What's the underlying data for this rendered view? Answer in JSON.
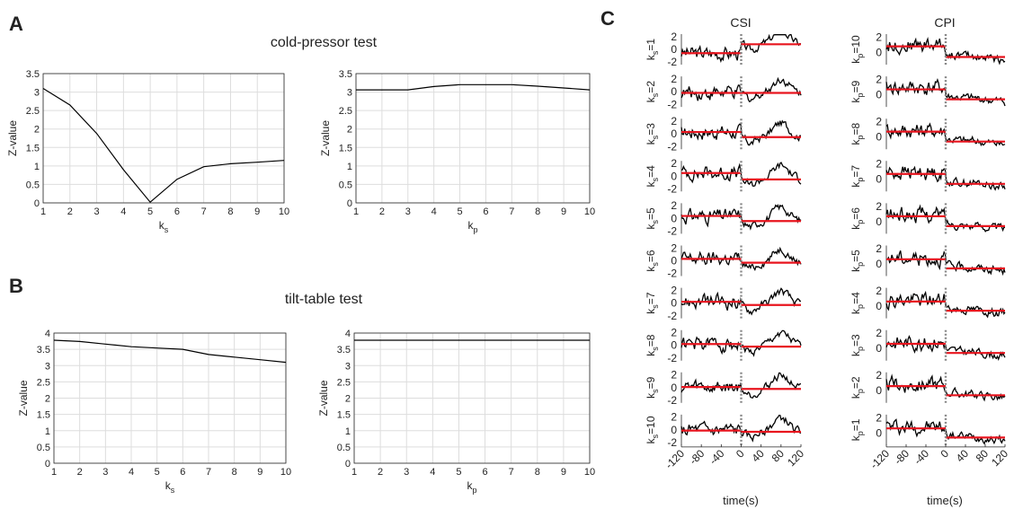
{
  "panels": {
    "A": {
      "letter": "A",
      "title": "cold-pressor test"
    },
    "B": {
      "letter": "B",
      "title": "tilt-table test"
    },
    "C": {
      "letter": "C",
      "col_titles": [
        "CSI",
        "CPI"
      ],
      "xlabel": "time(s)"
    }
  },
  "colors": {
    "line": "#000000",
    "red_mean": "#e8141e",
    "grid": "#dddddd",
    "dotted": "#888888"
  },
  "chart_data": [
    {
      "id": "A-left",
      "type": "line",
      "x": [
        1,
        2,
        3,
        4,
        5,
        6,
        7,
        8,
        9,
        10
      ],
      "series": [
        {
          "values": [
            3.1,
            2.65,
            1.88,
            0.9,
            0.02,
            0.64,
            0.98,
            1.06,
            1.1,
            1.15
          ]
        }
      ],
      "xlabel": "k",
      "xlabel_sub": "s",
      "ylabel": "Z-value",
      "xlim": [
        1,
        10
      ],
      "ylim": [
        0,
        3.5
      ],
      "xticks": [
        1,
        2,
        3,
        4,
        5,
        6,
        7,
        8,
        9,
        10
      ],
      "yticks": [
        0,
        0.5,
        1,
        1.5,
        2,
        2.5,
        3,
        3.5
      ],
      "yticklabels": [
        "0",
        "0.5",
        "1",
        "1.5",
        "2",
        "2.5",
        "3",
        "3.5"
      ],
      "grid": true
    },
    {
      "id": "A-right",
      "type": "line",
      "x": [
        1,
        2,
        3,
        4,
        5,
        6,
        7,
        8,
        9,
        10
      ],
      "series": [
        {
          "values": [
            3.06,
            3.06,
            3.06,
            3.15,
            3.2,
            3.2,
            3.2,
            3.16,
            3.11,
            3.06
          ]
        }
      ],
      "xlabel": "k",
      "xlabel_sub": "p",
      "ylabel": "Z-value",
      "xlim": [
        1,
        10
      ],
      "ylim": [
        0,
        3.5
      ],
      "xticks": [
        1,
        2,
        3,
        4,
        5,
        6,
        7,
        8,
        9,
        10
      ],
      "yticks": [
        0,
        0.5,
        1,
        1.5,
        2,
        2.5,
        3,
        3.5
      ],
      "yticklabels": [
        "0",
        "0.5",
        "1",
        "1.5",
        "2",
        "2.5",
        "3",
        "3.5"
      ],
      "grid": true
    },
    {
      "id": "B-left",
      "type": "line",
      "x": [
        1,
        2,
        3,
        4,
        5,
        6,
        7,
        8,
        9,
        10
      ],
      "series": [
        {
          "values": [
            3.78,
            3.74,
            3.66,
            3.58,
            3.54,
            3.5,
            3.34,
            3.26,
            3.18,
            3.1
          ]
        }
      ],
      "xlabel": "k",
      "xlabel_sub": "s",
      "ylabel": "Z-value",
      "xlim": [
        1,
        10
      ],
      "ylim": [
        0,
        4
      ],
      "xticks": [
        1,
        2,
        3,
        4,
        5,
        6,
        7,
        8,
        9,
        10
      ],
      "yticks": [
        0,
        0.5,
        1,
        1.5,
        2,
        2.5,
        3,
        3.5,
        4
      ],
      "yticklabels": [
        "0",
        "0.5",
        "1",
        "1.5",
        "2",
        "2.5",
        "3",
        "3.5",
        "4"
      ],
      "grid": true
    },
    {
      "id": "B-right",
      "type": "line",
      "x": [
        1,
        2,
        3,
        4,
        5,
        6,
        7,
        8,
        9,
        10
      ],
      "series": [
        {
          "values": [
            3.78,
            3.78,
            3.78,
            3.78,
            3.78,
            3.78,
            3.78,
            3.78,
            3.78,
            3.78
          ]
        }
      ],
      "xlabel": "k",
      "xlabel_sub": "p",
      "ylabel": "Z-value",
      "xlim": [
        1,
        10
      ],
      "ylim": [
        0,
        4
      ],
      "xticks": [
        1,
        2,
        3,
        4,
        5,
        6,
        7,
        8,
        9,
        10
      ],
      "yticks": [
        0,
        0.5,
        1,
        1.5,
        2,
        2.5,
        3,
        3.5,
        4
      ],
      "yticklabels": [
        "0",
        "0.5",
        "1",
        "1.5",
        "2",
        "2.5",
        "3",
        "3.5",
        "4"
      ],
      "grid": true
    },
    {
      "id": "C-CSI",
      "type": "line",
      "title": "CSI",
      "xlabel": "time(s)",
      "xlim": [
        -120,
        120
      ],
      "xticks": [
        -120,
        -80,
        -40,
        0,
        40,
        80,
        120
      ],
      "xticklabels": [
        "-120",
        "-80",
        "-40",
        "0",
        "40",
        "80",
        "120"
      ],
      "yticks": [
        -2,
        0,
        2
      ],
      "yticklabels": [
        "-2",
        "0",
        "2"
      ],
      "row_labels": [
        {
          "k": "k",
          "sub": "s",
          "n": "=1"
        },
        {
          "k": "k",
          "sub": "s",
          "n": "=2"
        },
        {
          "k": "k",
          "sub": "s",
          "n": "=3"
        },
        {
          "k": "k",
          "sub": "s",
          "n": "=4"
        },
        {
          "k": "k",
          "sub": "s",
          "n": "=5"
        },
        {
          "k": "k",
          "sub": "s",
          "n": "=6"
        },
        {
          "k": "k",
          "sub": "s",
          "n": "=7"
        },
        {
          "k": "k",
          "sub": "s",
          "n": "=8"
        },
        {
          "k": "k",
          "sub": "s",
          "n": "=9"
        },
        {
          "k": "k",
          "sub": "s",
          "n": "=10"
        }
      ],
      "pre_mean": [
        -0.6,
        -0.2,
        0.3,
        0.5,
        0.4,
        0.3,
        0.2,
        0.2,
        0.1,
        -0.1
      ],
      "post_mean": [
        0.8,
        -0.2,
        -0.5,
        -0.5,
        -0.4,
        -0.3,
        -0.3,
        -0.2,
        -0.2,
        -0.3
      ],
      "trace": [
        -0.5,
        0.2,
        -0.8,
        -0.3,
        0.4,
        -0.9,
        -0.2,
        0.6,
        -0.4,
        -1.1,
        0.3,
        -0.6,
        0.1,
        -0.9,
        -0.2,
        0.5,
        -0.7,
        -0.1,
        0.4,
        -0.8,
        -0.3,
        0.2,
        -0.6,
        -1.2,
        -0.4,
        0.3,
        -0.9,
        -0.2,
        -0.7,
        -1.4,
        -0.5,
        0.1,
        -0.8,
        -0.3,
        0.2,
        -0.6,
        -1.0,
        -0.2,
        0.3,
        -0.7,
        -0.1,
        -0.5,
        0.2,
        -1.3,
        -0.4,
        0.1,
        -0.6,
        -0.2,
        -1.1,
        -0.5,
        0.3,
        0.9,
        0.4,
        1.2,
        0.6,
        1.5,
        1.0,
        1.8,
        1.3,
        1.9,
        1.5,
        2.0,
        1.6,
        1.9,
        1.4,
        2.0,
        1.7,
        1.9,
        1.5,
        1.7
      ]
    },
    {
      "id": "C-CPI",
      "type": "line",
      "title": "CPI",
      "xlabel": "time(s)",
      "xlim": [
        -120,
        120
      ],
      "xticks": [
        -120,
        -80,
        -40,
        0,
        40,
        80,
        120
      ],
      "xticklabels": [
        "-120",
        "-80",
        "-40",
        "0",
        "40",
        "80",
        "120"
      ],
      "yticks": [
        0,
        2
      ],
      "yticklabels": [
        "0",
        "2"
      ],
      "row_labels": [
        {
          "k": "k",
          "sub": "p",
          "n": "=10"
        },
        {
          "k": "k",
          "sub": "p",
          "n": "=9"
        },
        {
          "k": "k",
          "sub": "p",
          "n": "=8"
        },
        {
          "k": "k",
          "sub": "p",
          "n": "=7"
        },
        {
          "k": "k",
          "sub": "p",
          "n": "=6"
        },
        {
          "k": "k",
          "sub": "p",
          "n": "=5"
        },
        {
          "k": "k",
          "sub": "p",
          "n": "=4"
        },
        {
          "k": "k",
          "sub": "p",
          "n": "=3"
        },
        {
          "k": "k",
          "sub": "p",
          "n": "=2"
        },
        {
          "k": "k",
          "sub": "p",
          "n": "=1"
        }
      ],
      "pre_mean": [
        0.8,
        0.7,
        0.7,
        0.7,
        0.7,
        0.6,
        0.6,
        0.6,
        0.6,
        0.6
      ],
      "post_mean": [
        -0.6,
        -0.6,
        -0.6,
        -0.6,
        -0.6,
        -0.6,
        -0.6,
        -0.6,
        -0.6,
        -0.6
      ]
    }
  ]
}
